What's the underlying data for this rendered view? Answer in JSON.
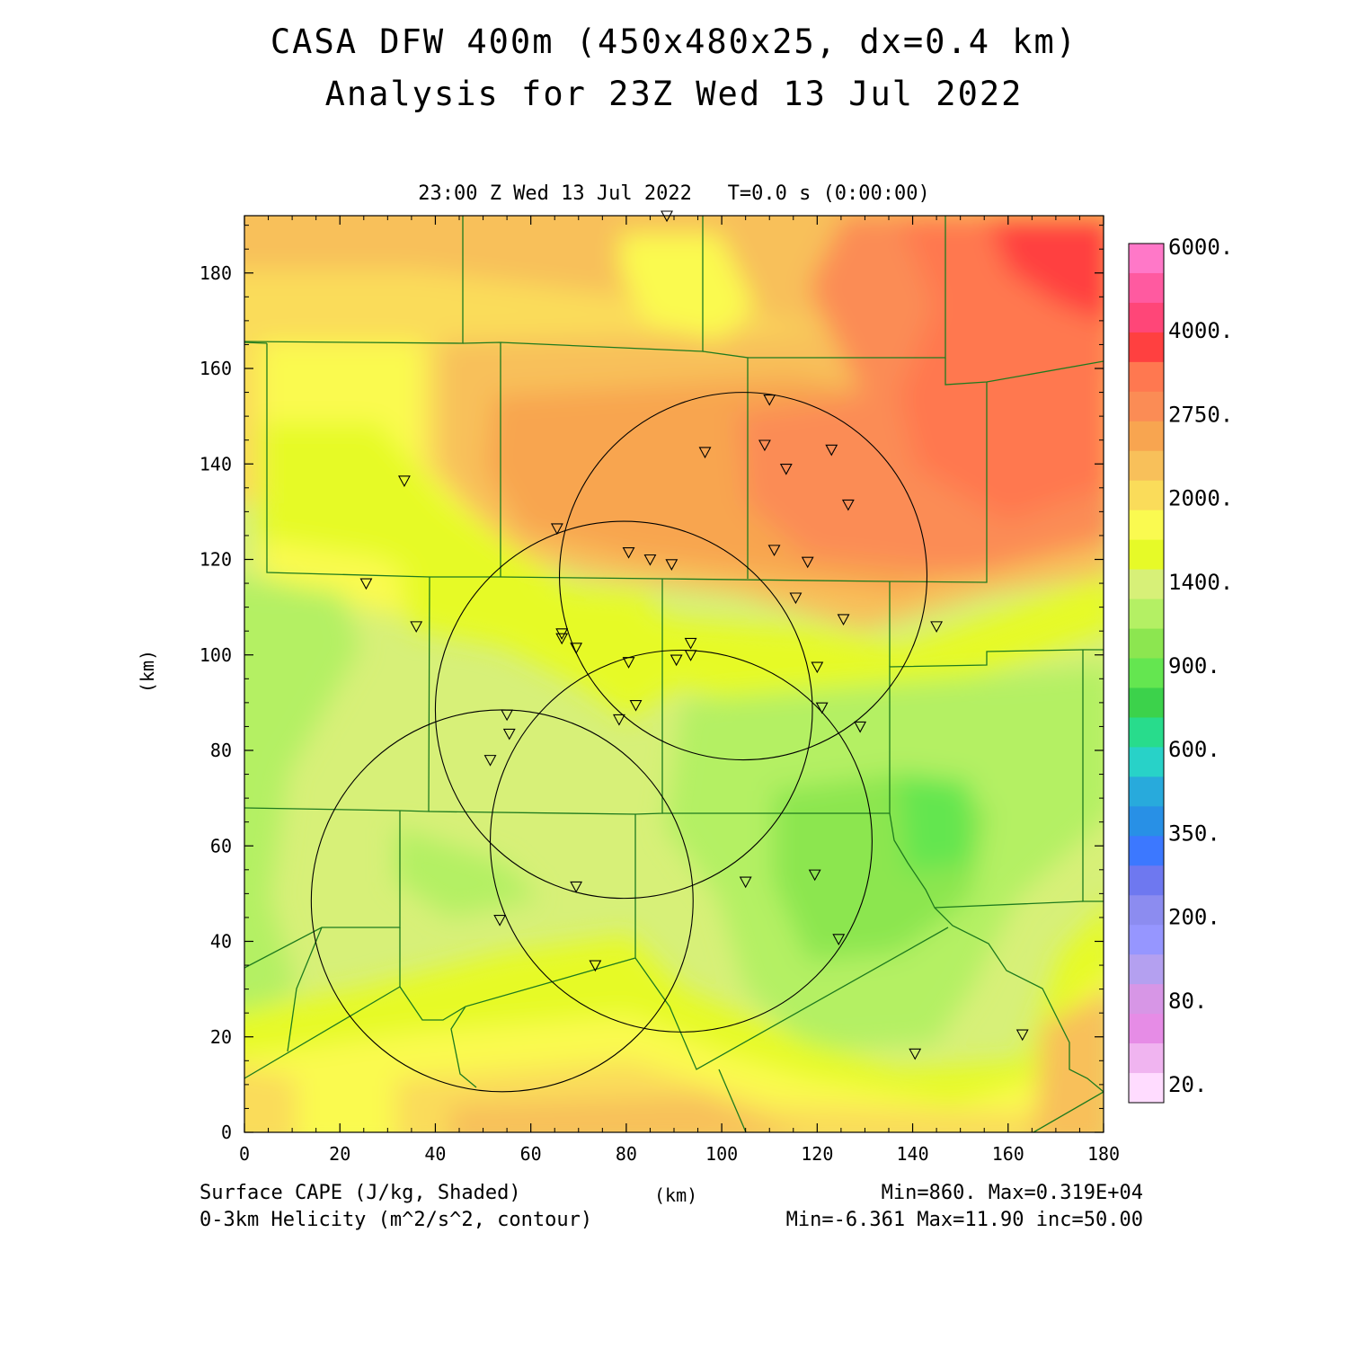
{
  "title": {
    "line1": "CASA DFW 400m (450x480x25, dx=0.4 km)",
    "line2": "Analysis for 23Z Wed 13 Jul 2022"
  },
  "timestamp": "23:00 Z Wed 13 Jul 2022   T=0.0 s (0:00:00)",
  "axes": {
    "x_unit": "(km)",
    "y_unit": "(km)",
    "x_range": [
      0,
      180
    ],
    "y_range": [
      0,
      192
    ],
    "x_ticks": [
      "0",
      "20",
      "40",
      "60",
      "80",
      "100",
      "120",
      "140",
      "160",
      "180"
    ],
    "y_ticks": [
      "0",
      "20",
      "40",
      "60",
      "80",
      "100",
      "120",
      "140",
      "160",
      "180"
    ]
  },
  "footer": {
    "field1": "Surface CAPE (J/kg, Shaded)",
    "field2": "0-3km Helicity (m^2/s^2, contour)",
    "stat1": "Min=860. Max=0.319E+04",
    "stat2": "Min=-6.361 Max=11.90 inc=50.00"
  },
  "colorbar": {
    "labels": [
      "6000.",
      "4000.",
      "2750.",
      "2000.",
      "1400.",
      "900.",
      "600.",
      "350.",
      "200.",
      "80.",
      "20."
    ],
    "colors_top_to_bottom": [
      "#ff78c8",
      "#ff5aa0",
      "#ff4678",
      "#ff4040",
      "#ff7850",
      "#fb8c55",
      "#f8a550",
      "#f8c05a",
      "#fadc5a",
      "#fafa50",
      "#e6fa28",
      "#d7f078",
      "#b4f064",
      "#8ce650",
      "#64e650",
      "#3cd24b",
      "#28dc8c",
      "#28d2c8",
      "#28aadc",
      "#2890e6",
      "#3c78ff",
      "#6e78f0",
      "#8c8cf0",
      "#9696ff",
      "#b4a0f0",
      "#d796e6",
      "#e68ce6",
      "#f0b4f0",
      "#ffdcff"
    ]
  },
  "rings": [
    {
      "name": "radar-ring-northeast",
      "center_km": [
        104.5,
        116.5
      ],
      "radius_km": 38.5
    },
    {
      "name": "radar-ring-north",
      "center_km": [
        79.5,
        88.5
      ],
      "radius_km": 39.5
    },
    {
      "name": "radar-ring-east",
      "center_km": [
        91.5,
        61.0
      ],
      "radius_km": 40.0
    },
    {
      "name": "radar-ring-southwest",
      "center_km": [
        54.0,
        48.5
      ],
      "radius_km": 40.0
    }
  ],
  "stations_km": [
    [
      88.5,
      192.0
    ],
    [
      110.0,
      153.5
    ],
    [
      96.5,
      142.5
    ],
    [
      109.0,
      144.0
    ],
    [
      123.0,
      143.0
    ],
    [
      113.5,
      139.0
    ],
    [
      126.5,
      131.5
    ],
    [
      33.5,
      136.5
    ],
    [
      65.5,
      126.5
    ],
    [
      80.5,
      121.5
    ],
    [
      85.0,
      120.0
    ],
    [
      89.5,
      119.0
    ],
    [
      111.0,
      122.0
    ],
    [
      118.0,
      119.5
    ],
    [
      25.5,
      115.0
    ],
    [
      115.5,
      112.0
    ],
    [
      125.5,
      107.5
    ],
    [
      145.0,
      106.0
    ],
    [
      36.0,
      106.0
    ],
    [
      66.5,
      104.5
    ],
    [
      66.5,
      103.5
    ],
    [
      69.5,
      101.5
    ],
    [
      93.5,
      102.5
    ],
    [
      93.5,
      100.0
    ],
    [
      90.5,
      99.0
    ],
    [
      80.5,
      98.5
    ],
    [
      120.0,
      97.5
    ],
    [
      82.0,
      89.5
    ],
    [
      121.0,
      89.0
    ],
    [
      78.5,
      86.5
    ],
    [
      55.0,
      87.5
    ],
    [
      129.0,
      85.0
    ],
    [
      55.5,
      83.5
    ],
    [
      51.5,
      78.0
    ],
    [
      119.5,
      54.0
    ],
    [
      105.0,
      52.5
    ],
    [
      69.5,
      51.5
    ],
    [
      53.5,
      44.5
    ],
    [
      124.5,
      40.5
    ],
    [
      73.5,
      35.0
    ],
    [
      163.0,
      20.5
    ],
    [
      140.5,
      16.5
    ]
  ]
}
